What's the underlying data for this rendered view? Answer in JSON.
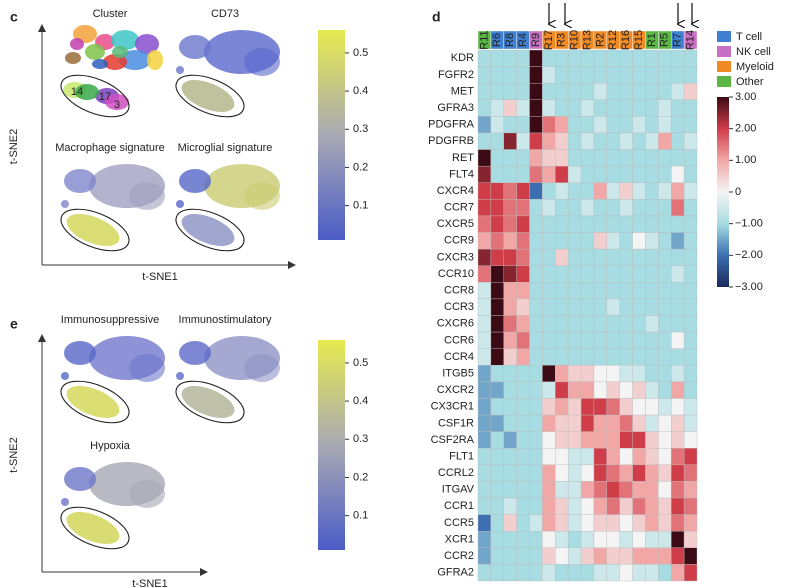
{
  "chart_data": [
    {
      "type": "embedding",
      "label": "c",
      "plot_titles": [
        "Cluster",
        "CD73",
        "Macrophage signature",
        "Microglial signature"
      ],
      "cluster_labels": [
        "14",
        "17",
        "3"
      ],
      "xlabel": "t-SNE1",
      "ylabel": "t-SNE2",
      "clim": [
        0.01,
        0.56
      ],
      "cticks": [
        0.1,
        0.2,
        0.3,
        0.4,
        0.5
      ],
      "colormap": [
        "#4a5cc6",
        "#a9a9b4",
        "#e6ea4e"
      ]
    },
    {
      "type": "heatmap",
      "label": "d",
      "columns": [
        "R11",
        "R6",
        "R8",
        "R4",
        "R9",
        "R17",
        "R3",
        "R10",
        "R13",
        "R2",
        "R12",
        "R16",
        "R15",
        "R1",
        "R5",
        "R7",
        "R14"
      ],
      "column_colors": [
        "#5bb646",
        "#3f7fcf",
        "#3f7fcf",
        "#3f7fcf",
        "#c76fc2",
        "#f08a24",
        "#f08a24",
        "#f08a24",
        "#f08a24",
        "#f08a24",
        "#f08a24",
        "#f08a24",
        "#f08a24",
        "#5bb646",
        "#5bb646",
        "#3f7fcf",
        "#c76fc2"
      ],
      "rows": [
        "KDR",
        "FGFR2",
        "MET",
        "GFRA3",
        "PDGFRA",
        "PDGFRB",
        "RET",
        "FLT4",
        "CXCR4",
        "CCR7",
        "CXCR5",
        "CCR9",
        "CXCR3",
        "CCR10",
        "CCR8",
        "CCR3",
        "CXCR6",
        "CCR6",
        "CCR4",
        "ITGB5",
        "CXCR2",
        "CX3CR1",
        "CSF1R",
        "CSF2RA",
        "FLT1",
        "CCRL2",
        "ITGAV",
        "CCR1",
        "CCR5",
        "XCR1",
        "CCR2",
        "GFRA2"
      ],
      "values": [
        [
          -1,
          -1,
          -1,
          -1,
          3,
          -1,
          -1,
          -1,
          -1,
          -1,
          -1,
          -1,
          -1,
          -1,
          -1,
          -1,
          -1
        ],
        [
          -1,
          -1,
          -1,
          -1,
          3,
          -0.5,
          -1,
          -1,
          -1,
          -1,
          -1,
          -1,
          -1,
          -1,
          -1,
          -1,
          -1
        ],
        [
          -1,
          -1,
          -1,
          -1,
          3,
          -1,
          -1,
          -1,
          -1,
          -0.5,
          -1,
          -1,
          -1,
          -1,
          -1,
          -0.5,
          0.5
        ],
        [
          -1,
          -0.5,
          0.5,
          -0.5,
          3,
          -0.5,
          -1,
          -1,
          -0.5,
          -1,
          -1,
          -1,
          -1,
          -1,
          -0.5,
          -1,
          -1
        ],
        [
          -1.5,
          -0.5,
          -1,
          -1,
          3,
          1.5,
          1,
          -1,
          -1,
          -0.5,
          -1,
          -1,
          -0.5,
          -1,
          -0.5,
          -1,
          -1
        ],
        [
          -1,
          -1,
          2.5,
          -0.5,
          2,
          1,
          0.5,
          -1,
          -0.5,
          -1,
          -1,
          -0.5,
          -1,
          -0.5,
          1,
          -1,
          -0.5
        ],
        [
          3,
          -1,
          -1,
          -1,
          1,
          0.5,
          0.5,
          -1,
          -1,
          -1,
          -1,
          -1,
          -1,
          -1,
          -1,
          -1,
          -1
        ],
        [
          2.5,
          -1,
          -1,
          -1,
          1.5,
          1,
          2,
          -0.5,
          -1,
          -1,
          -1,
          -1,
          -1,
          -1,
          -1,
          0,
          -1
        ],
        [
          2,
          2,
          1.5,
          2,
          -2,
          -1,
          -0.5,
          -1,
          -1,
          1,
          -0.5,
          0.5,
          -0.5,
          -1,
          -0.5,
          1,
          -0.5
        ],
        [
          2,
          2,
          1.5,
          1.5,
          -1,
          -0.5,
          -1,
          -1,
          -0.5,
          -1,
          -1,
          -0.5,
          -1,
          -1,
          -1,
          1.5,
          -1
        ],
        [
          1.5,
          2,
          1.5,
          2,
          -1,
          -1,
          -1,
          -1,
          -1,
          -1,
          -1,
          -1,
          -1,
          -1,
          -1,
          -1,
          -1
        ],
        [
          1,
          1.5,
          1,
          1.5,
          -1,
          -1,
          -1,
          -1,
          -1,
          0.5,
          -0.5,
          -1,
          0,
          -0.5,
          -1,
          -1.5,
          -1
        ],
        [
          2.5,
          2,
          2,
          1.5,
          -1,
          -1,
          0.5,
          -1,
          -1,
          -1,
          -1,
          -1,
          -1,
          -1,
          -1,
          -1,
          -1
        ],
        [
          1.5,
          3,
          2.5,
          2,
          -1,
          -1,
          -1,
          -1,
          -1,
          -1,
          -1,
          -1,
          -1,
          -1,
          -1,
          -0.5,
          -1
        ],
        [
          -0.5,
          3,
          1,
          1,
          -1,
          -1,
          -1,
          -1,
          -1,
          -1,
          -1,
          -1,
          -1,
          -1,
          -1,
          -1,
          -1
        ],
        [
          -0.5,
          3,
          1,
          0.5,
          -1,
          -1,
          -1,
          -1,
          -1,
          -1,
          -0.5,
          -1,
          -1,
          -1,
          -1,
          -1,
          -1
        ],
        [
          -0.5,
          3,
          1.5,
          1,
          -1,
          -1,
          -1,
          -1,
          -1,
          -1,
          -1,
          -1,
          -1,
          -0.5,
          -1,
          -1,
          -1
        ],
        [
          -0.5,
          3,
          1,
          1.5,
          -1,
          -1,
          -1,
          -1,
          -1,
          -1,
          -1,
          -1,
          -1,
          -1,
          -1,
          0,
          -1
        ],
        [
          -0.5,
          3,
          0.5,
          1,
          -1,
          -1,
          -1,
          -1,
          -1,
          -1,
          -1,
          -1,
          -1,
          -1,
          -1,
          -1,
          -1
        ],
        [
          -1.5,
          -1,
          -1,
          -1,
          -1,
          3,
          1,
          0.5,
          0.5,
          0,
          0,
          -0.5,
          -0.5,
          -1,
          -1,
          -0.5,
          -1
        ],
        [
          -1.5,
          -1.5,
          -1,
          -1,
          -1,
          -0.5,
          2,
          1,
          1,
          0,
          0.5,
          0,
          0.5,
          -0.5,
          -1,
          1,
          -1
        ],
        [
          -1.5,
          -1,
          -1,
          -1,
          -1,
          0.5,
          1,
          0.5,
          2,
          2,
          1.5,
          0.5,
          0,
          0,
          -0.5,
          0,
          -0.5
        ],
        [
          -1.5,
          -1.5,
          -1,
          -1,
          -1,
          1,
          0.5,
          0.5,
          2,
          1,
          1,
          1.5,
          0.5,
          -0.5,
          0,
          0.5,
          -0.5
        ],
        [
          -1.5,
          -1,
          -1.5,
          -1,
          -1,
          0,
          0.5,
          0.5,
          1,
          1,
          1,
          2,
          2,
          0.5,
          0,
          0.5,
          0
        ],
        [
          -1,
          -1,
          -1,
          -1,
          -1,
          0,
          0,
          -0.5,
          -0.5,
          2,
          1,
          0,
          1,
          0.5,
          0,
          1.5,
          2
        ],
        [
          -1,
          -1,
          -1,
          -1,
          -1,
          1,
          0,
          -0.5,
          0,
          2,
          1.5,
          1,
          2,
          1,
          0.5,
          2,
          1.5
        ],
        [
          -1,
          -1,
          -1,
          -1,
          -1,
          1,
          -0.5,
          -0.5,
          1,
          1.5,
          2,
          1.5,
          1,
          1,
          0,
          1.5,
          1
        ],
        [
          -1,
          -1,
          -0.5,
          -1,
          -1,
          1,
          0.5,
          -0.5,
          0,
          1,
          1.5,
          0.5,
          1.5,
          1,
          0.5,
          2,
          1.5
        ],
        [
          -2,
          -1,
          0.5,
          -1,
          -0.5,
          1,
          0.5,
          -0.5,
          0,
          0.5,
          0.5,
          0,
          0.5,
          1,
          0.5,
          1.5,
          1
        ],
        [
          -1.5,
          -1,
          -1,
          -1,
          -1,
          0,
          -0.5,
          -1,
          -0.5,
          0,
          0,
          -0.5,
          0,
          -0.5,
          -0.5,
          3,
          0.5
        ],
        [
          -1.5,
          -1,
          -1,
          -1,
          -1,
          0.5,
          0,
          -0.5,
          0.5,
          1,
          0.5,
          0.5,
          1,
          1,
          1,
          2,
          3
        ],
        [
          -1,
          -1,
          -1,
          -1,
          -1,
          -0.5,
          -1,
          -1,
          -1,
          -0.5,
          -0.5,
          0,
          -0.5,
          -0.5,
          -1,
          1,
          2
        ]
      ],
      "clim": [
        -3,
        3
      ],
      "cticks": [
        {
          "value": 3,
          "label": "3.00"
        },
        {
          "value": 2,
          "label": "2.00"
        },
        {
          "value": 1,
          "label": "1.00"
        },
        0,
        {
          "value": -1,
          "label": "−1.00"
        },
        {
          "value": -2,
          "label": "−2.00"
        },
        {
          "value": -3,
          "label": "−3.00"
        }
      ],
      "colormap": [
        "#1b2a5c",
        "#3b6fb2",
        "#a6dce2",
        "#f4f4f4",
        "#f2a7a7",
        "#cf3d48",
        "#3c0a15"
      ],
      "legend": [
        {
          "name": "T cell",
          "color": "#3f7fcf"
        },
        {
          "name": "NK cell",
          "color": "#c76fc2"
        },
        {
          "name": "Myeloid",
          "color": "#f08a24"
        },
        {
          "name": "Other",
          "color": "#5bb646"
        }
      ]
    },
    {
      "type": "embedding",
      "label": "e",
      "plot_titles": [
        "Immunosuppressive",
        "Immunostimulatory",
        "Hypoxia"
      ],
      "xlabel": "t-SNE1",
      "ylabel": "t-SNE2",
      "clim": [
        0.01,
        0.56
      ],
      "cticks": [
        0.1,
        0.2,
        0.3,
        0.4,
        0.5
      ],
      "colormap": [
        "#4a5cc6",
        "#a9a9b4",
        "#e6ea4e"
      ]
    }
  ]
}
